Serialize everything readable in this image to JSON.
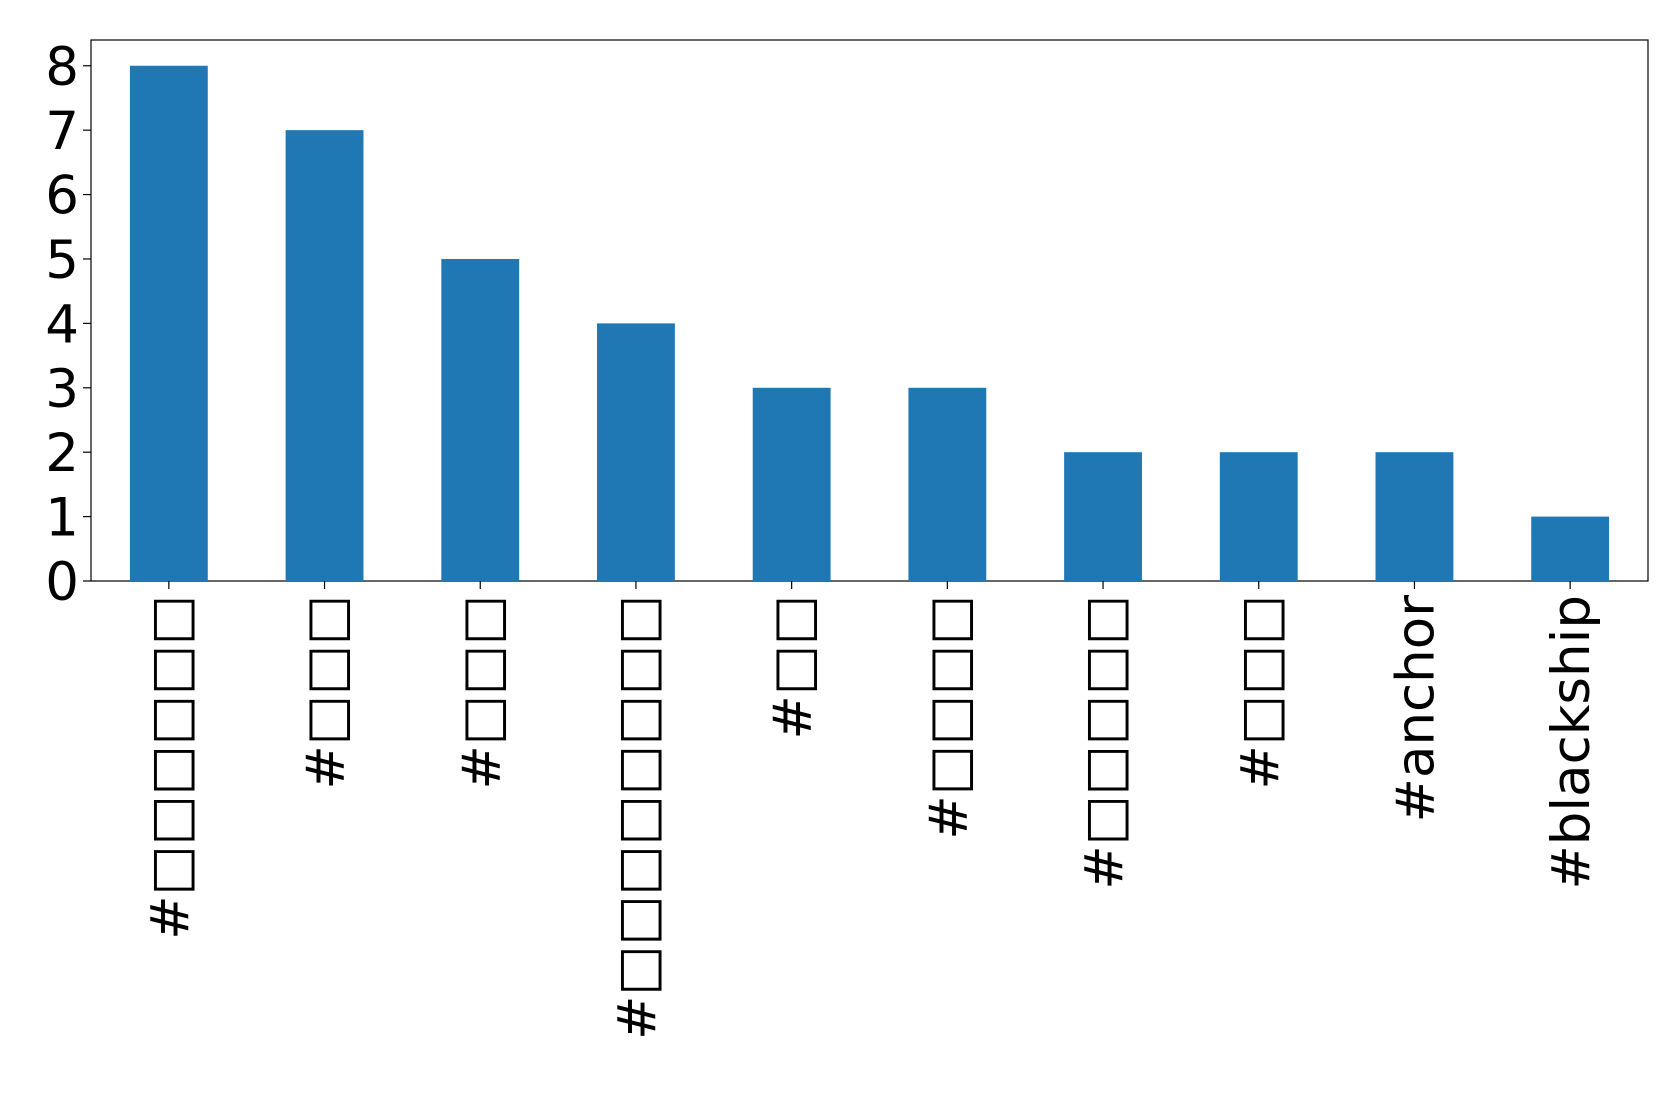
{
  "chart_data": {
    "type": "bar",
    "categories": [
      "#□□□□□□",
      "#□□□",
      "#□□□",
      "#□□□□□□□□",
      "#□□",
      "#□□□□",
      "#□□□□□",
      "#□□□",
      "#anchor",
      "#blackship"
    ],
    "values": [
      8,
      7,
      5,
      4,
      3,
      3,
      2,
      2,
      2,
      1
    ],
    "color": "#1f77b4",
    "ylim": [
      0,
      8.4
    ],
    "yticks": [
      0,
      1,
      2,
      3,
      4,
      5,
      6,
      7,
      8
    ],
    "grid": false
  }
}
